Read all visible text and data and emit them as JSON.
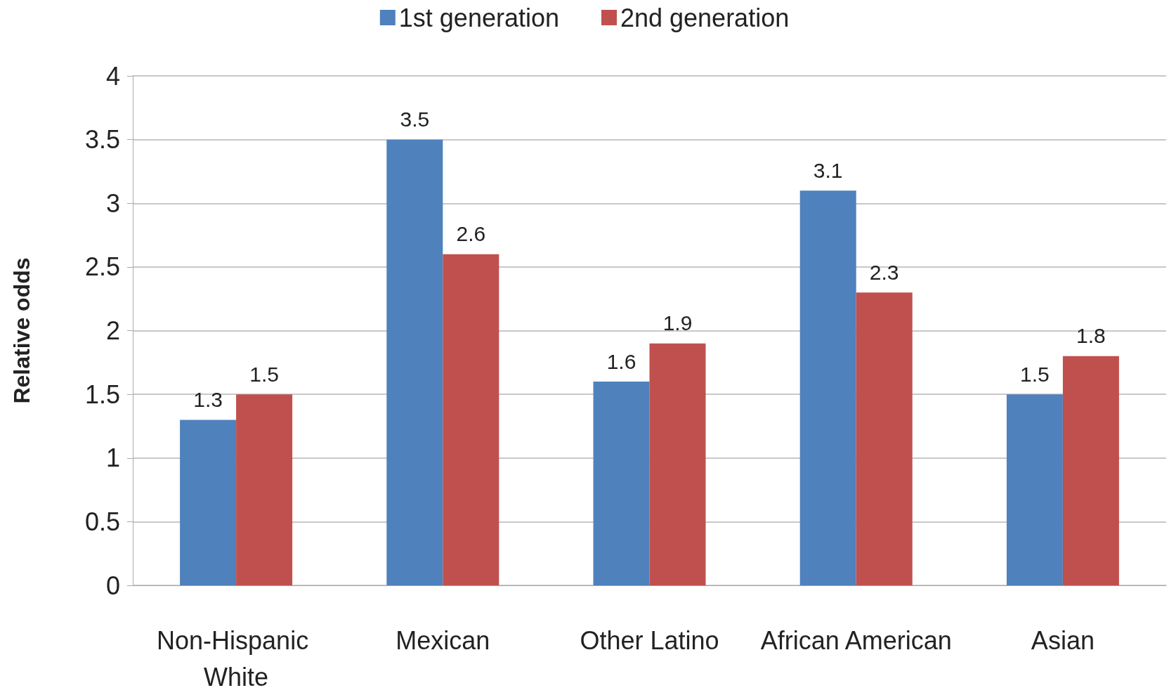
{
  "chart_data": {
    "type": "bar",
    "ylabel": "Relative odds",
    "categories": [
      "Non-Hispanic White",
      "Mexican",
      "Other Latino",
      "African American",
      "Asian"
    ],
    "series": [
      {
        "name": "1st generation",
        "color": "#4f81bd",
        "values": [
          1.3,
          3.5,
          1.6,
          3.1,
          1.5
        ]
      },
      {
        "name": "2nd generation",
        "color": "#c0504d",
        "values": [
          1.5,
          2.6,
          1.9,
          2.3,
          1.8
        ]
      }
    ],
    "ylim": [
      0,
      4
    ],
    "yticks": [
      0,
      0.5,
      1,
      1.5,
      2,
      2.5,
      3,
      3.5,
      4
    ],
    "grid": "y",
    "legend": "top",
    "data_labels": true
  }
}
